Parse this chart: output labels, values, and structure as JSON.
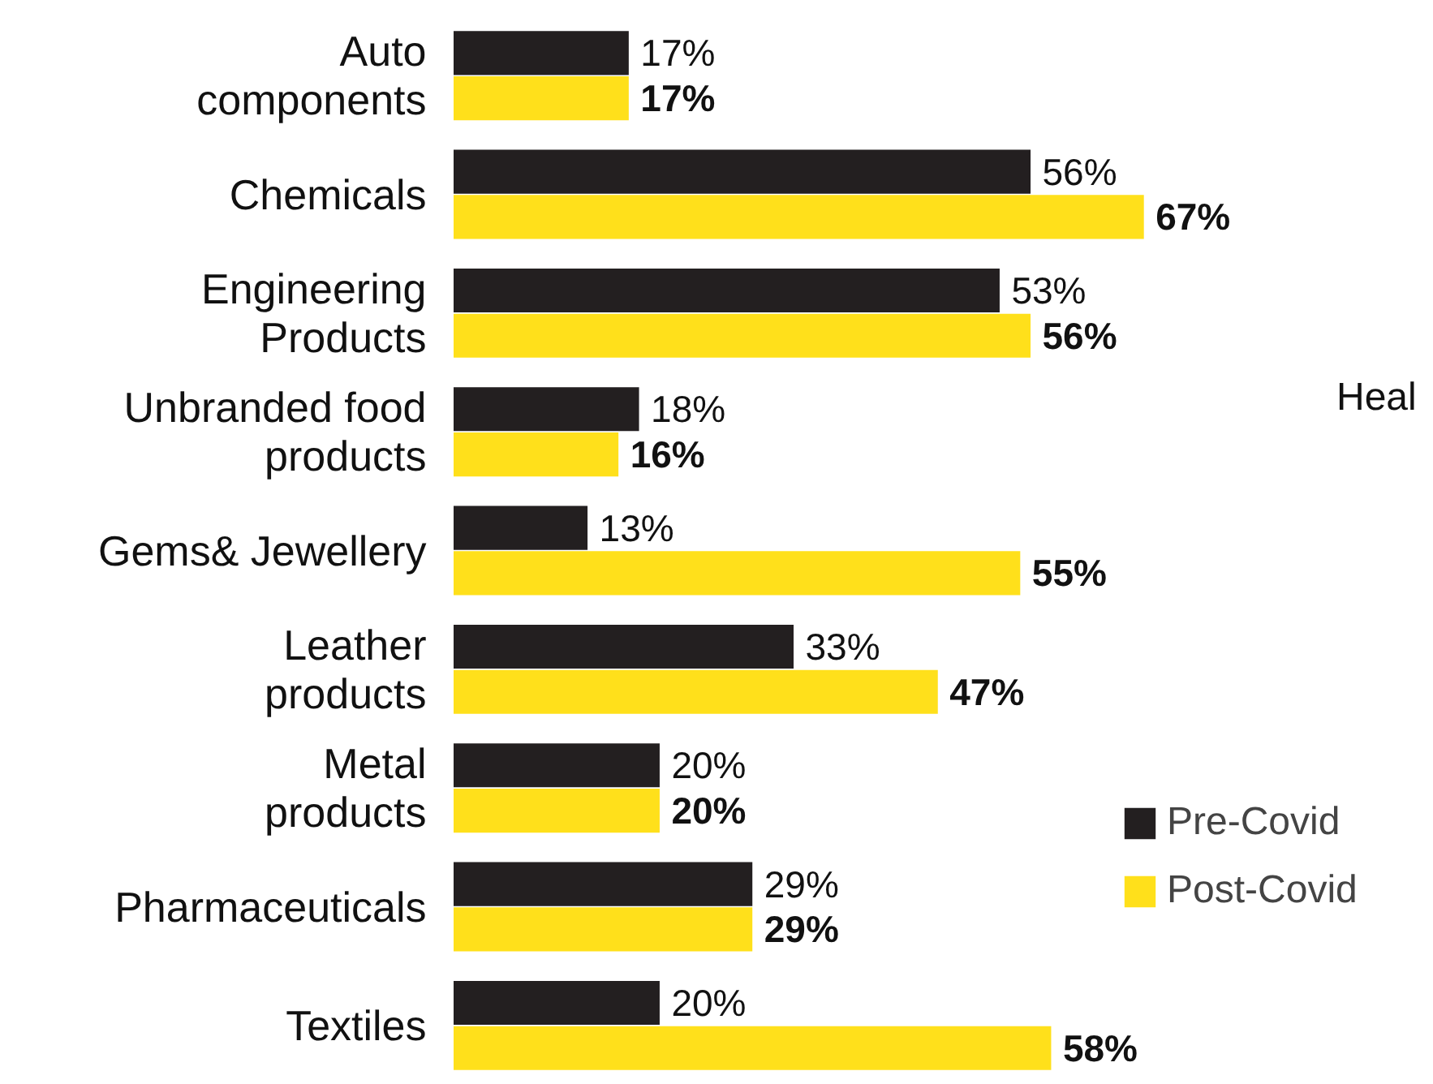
{
  "chart_data": {
    "type": "bar",
    "orientation": "horizontal",
    "categories": [
      "Auto\ncomponents",
      "Chemicals",
      "Engineering\nProducts",
      "Unbranded food\nproducts",
      "Gems& Jewellery",
      "Leather\nproducts",
      "Metal\nproducts",
      "Pharmaceuticals",
      "Textiles"
    ],
    "series": [
      {
        "name": "Pre-Covid",
        "color": "#231f20",
        "values": [
          17,
          56,
          53,
          18,
          13,
          33,
          20,
          29,
          20
        ],
        "value_labels": [
          "17%",
          "56%",
          "53%",
          "18%",
          "13%",
          "33%",
          "20%",
          "29%",
          "20%"
        ]
      },
      {
        "name": "Post-Covid",
        "color": "#ffe01b",
        "values": [
          17,
          67,
          56,
          16,
          55,
          47,
          20,
          29,
          58
        ],
        "value_labels": [
          "17%",
          "67%",
          "56%",
          "16%",
          "55%",
          "47%",
          "20%",
          "29%",
          "58%"
        ]
      }
    ],
    "annotations": [
      "Heal"
    ],
    "legend": "right"
  }
}
